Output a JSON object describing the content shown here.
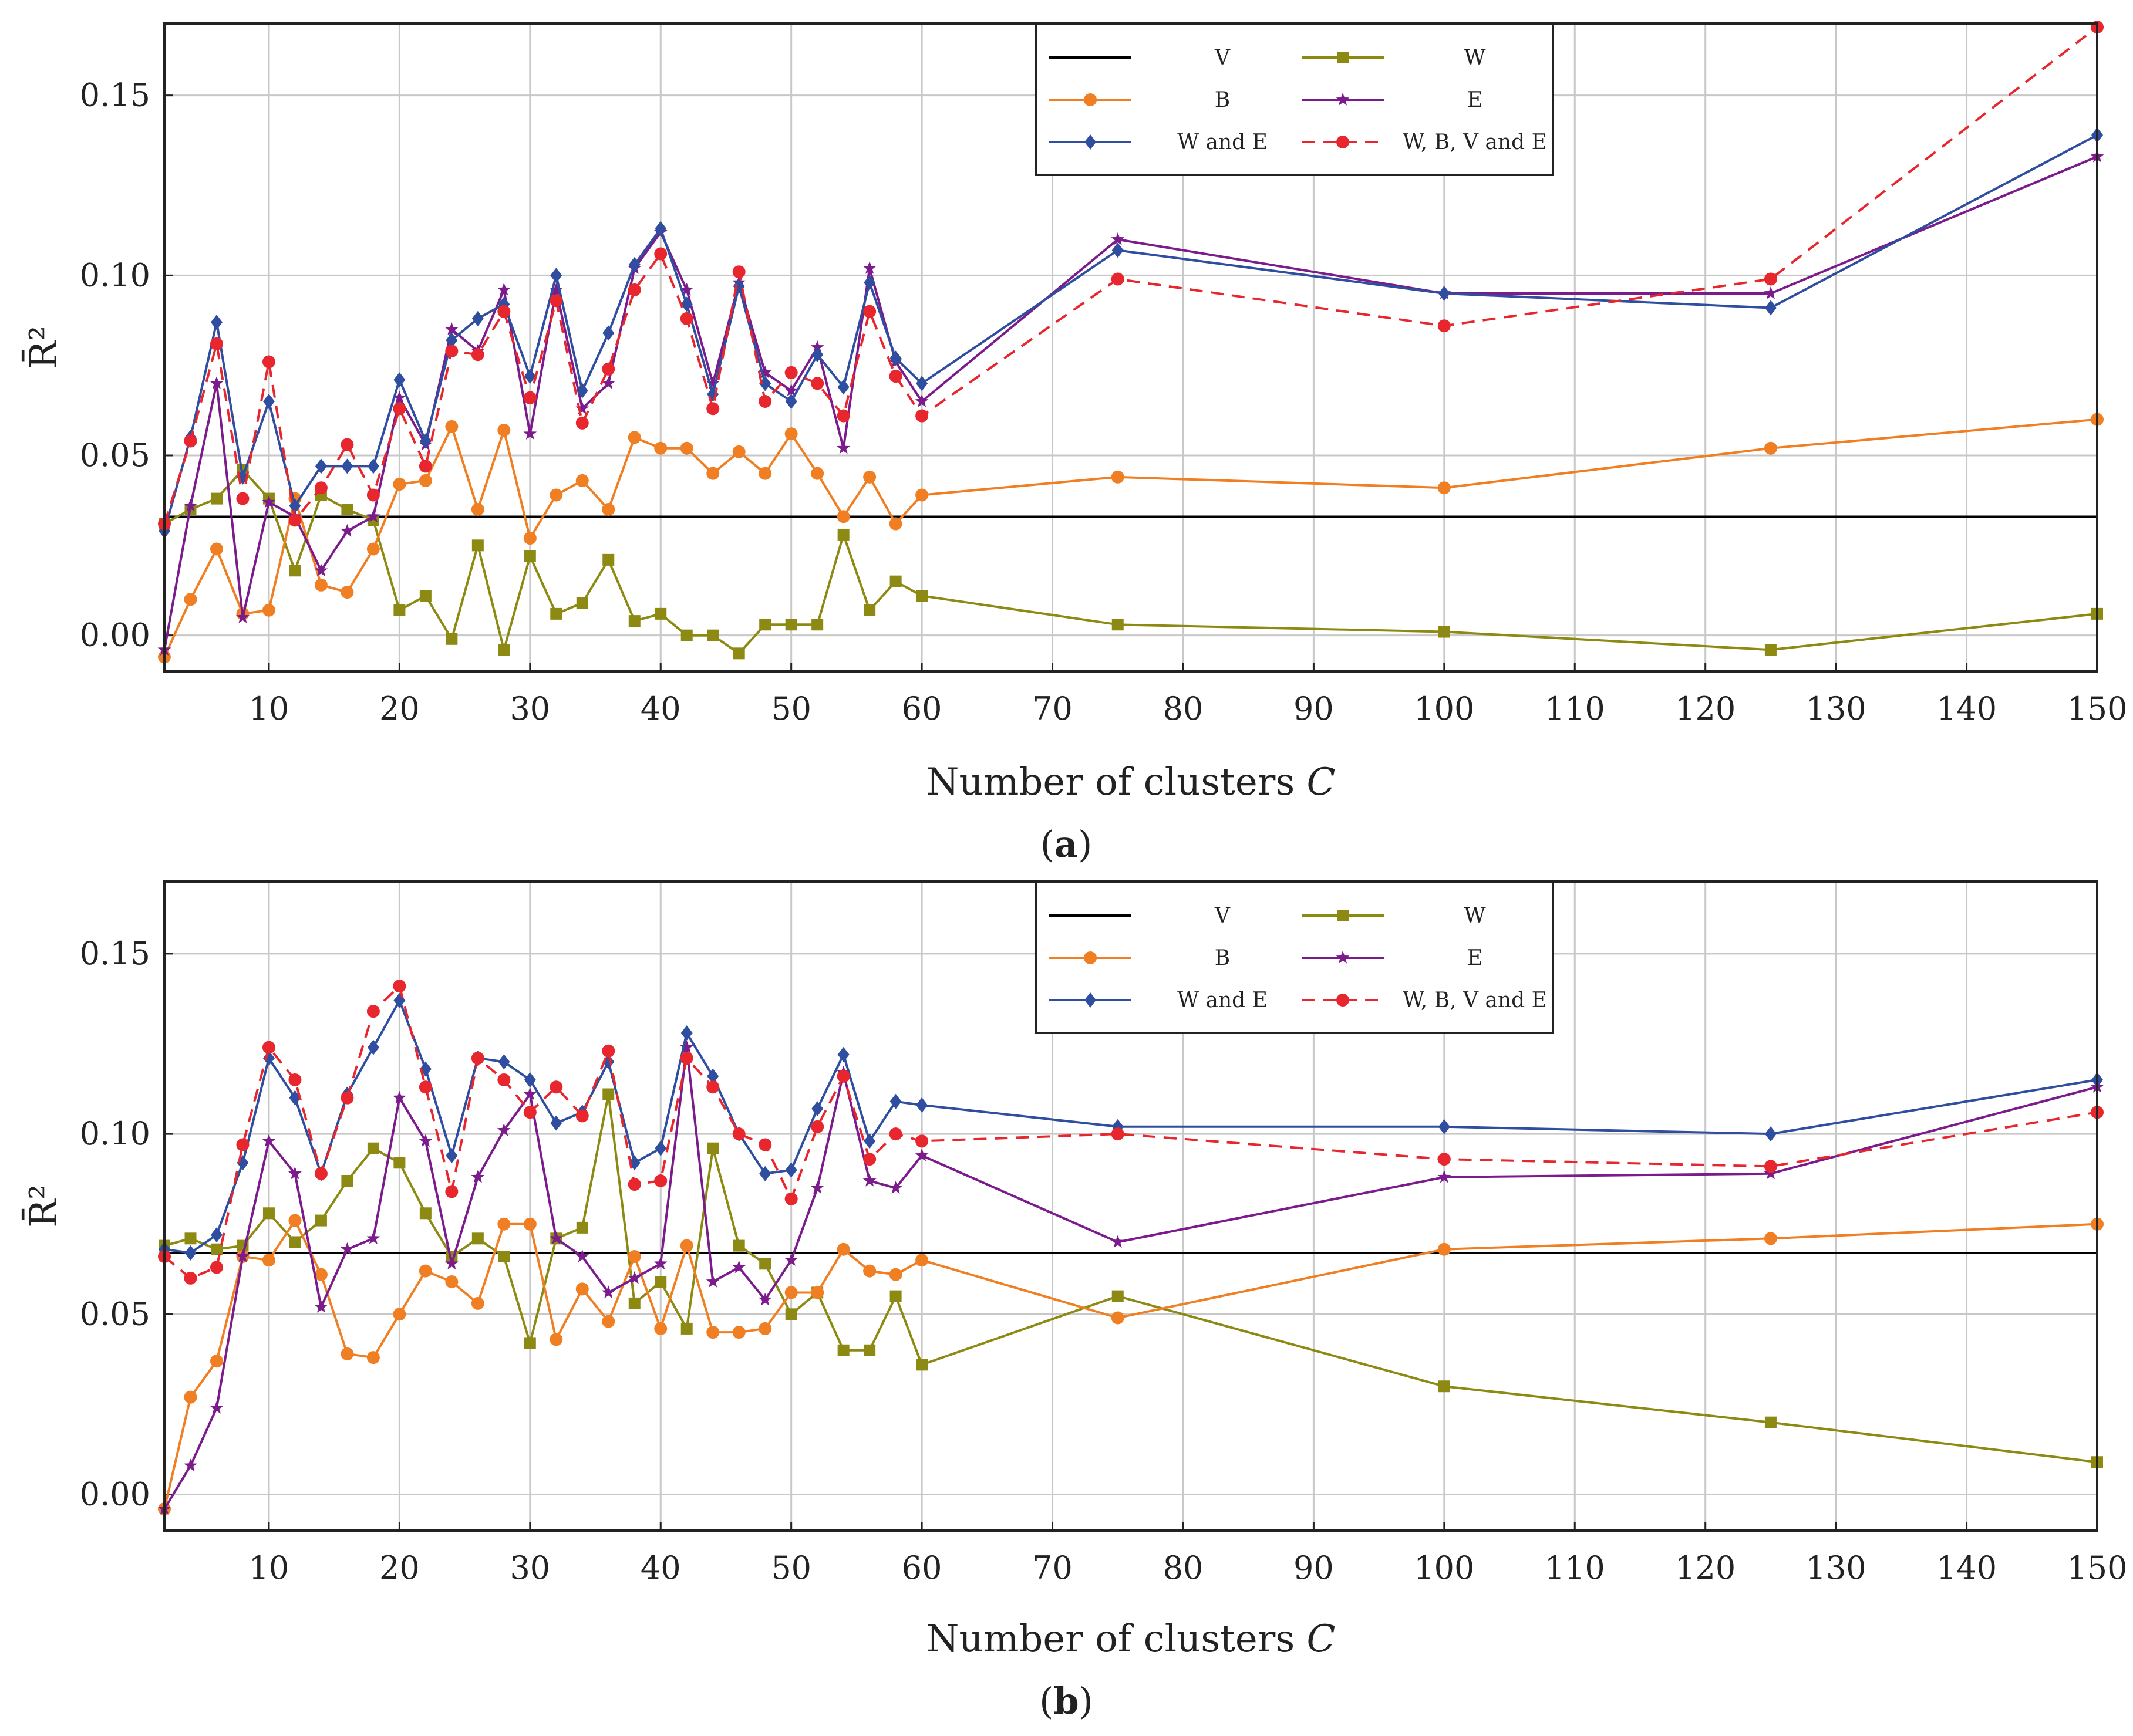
{
  "figure": {
    "captions": [
      "a",
      "b"
    ]
  },
  "chart_data": [
    {
      "panel": "a",
      "type": "line",
      "xlabel_text": "Number of clusters ",
      "xlabel_var": "C",
      "ylabel": "R̄²",
      "xlim": [
        2,
        150
      ],
      "ylim": [
        -0.01,
        0.17
      ],
      "xticks": [
        10,
        20,
        30,
        40,
        50,
        60,
        70,
        80,
        90,
        100,
        110,
        120,
        130,
        140,
        150
      ],
      "yticks": [
        0.0,
        0.05,
        0.1,
        0.15
      ],
      "ytick_labels": [
        "0.00",
        "0.05",
        "0.10",
        "0.15"
      ],
      "grid": true,
      "legend_position": "top-center",
      "legend": [
        "V",
        "W",
        "B",
        "E",
        "W and E",
        "W, B, V and E"
      ],
      "series": [
        {
          "name": "V",
          "color": "#000000",
          "marker": "none",
          "dash": false,
          "constant": 0.033
        },
        {
          "name": "W",
          "color": "#8c8a12",
          "marker": "square",
          "dash": false,
          "x": [
            2,
            4,
            6,
            8,
            10,
            12,
            14,
            16,
            18,
            20,
            22,
            24,
            26,
            28,
            30,
            32,
            34,
            36,
            38,
            40,
            42,
            44,
            46,
            48,
            50,
            52,
            54,
            56,
            58,
            60,
            75,
            100,
            125,
            150
          ],
          "y": [
            0.031,
            0.035,
            0.038,
            0.046,
            0.038,
            0.018,
            0.039,
            0.035,
            0.032,
            0.007,
            0.011,
            -0.001,
            0.025,
            -0.004,
            0.022,
            0.006,
            0.009,
            0.021,
            0.004,
            0.006,
            0.0,
            0.0,
            -0.005,
            0.003,
            0.003,
            0.003,
            0.028,
            0.007,
            0.015,
            0.011,
            0.003,
            0.001,
            -0.004,
            0.006
          ]
        },
        {
          "name": "B",
          "color": "#f07f23",
          "marker": "circle",
          "dash": false,
          "x": [
            2,
            4,
            6,
            8,
            10,
            12,
            14,
            16,
            18,
            20,
            22,
            24,
            26,
            28,
            30,
            32,
            34,
            36,
            38,
            40,
            42,
            44,
            46,
            48,
            50,
            52,
            54,
            56,
            58,
            60,
            75,
            100,
            125,
            150
          ],
          "y": [
            -0.006,
            0.01,
            0.024,
            0.006,
            0.007,
            0.038,
            0.014,
            0.012,
            0.024,
            0.042,
            0.043,
            0.058,
            0.035,
            0.057,
            0.027,
            0.039,
            0.043,
            0.035,
            0.055,
            0.052,
            0.052,
            0.045,
            0.051,
            0.045,
            0.056,
            0.045,
            0.033,
            0.044,
            0.031,
            0.039,
            0.044,
            0.041,
            0.052,
            0.06
          ]
        },
        {
          "name": "E",
          "color": "#7b1b8c",
          "marker": "star",
          "dash": false,
          "x": [
            2,
            4,
            6,
            8,
            10,
            12,
            14,
            16,
            18,
            20,
            22,
            24,
            26,
            28,
            30,
            32,
            34,
            36,
            38,
            40,
            42,
            44,
            46,
            48,
            50,
            52,
            54,
            56,
            58,
            60,
            75,
            100,
            125,
            150
          ],
          "y": [
            -0.004,
            0.036,
            0.07,
            0.005,
            0.037,
            0.033,
            0.018,
            0.029,
            0.033,
            0.066,
            0.053,
            0.085,
            0.079,
            0.096,
            0.056,
            0.096,
            0.063,
            0.07,
            0.102,
            0.112,
            0.096,
            0.07,
            0.098,
            0.073,
            0.068,
            0.08,
            0.052,
            0.102,
            0.076,
            0.065,
            0.11,
            0.095,
            0.095,
            0.133
          ]
        },
        {
          "name": "W and E",
          "color": "#2f4ea0",
          "marker": "diamond",
          "dash": false,
          "x": [
            2,
            4,
            6,
            8,
            10,
            12,
            14,
            16,
            18,
            20,
            22,
            24,
            26,
            28,
            30,
            32,
            34,
            36,
            38,
            40,
            42,
            44,
            46,
            48,
            50,
            52,
            54,
            56,
            58,
            60,
            75,
            100,
            125,
            150
          ],
          "y": [
            0.029,
            0.055,
            0.087,
            0.044,
            0.065,
            0.036,
            0.047,
            0.047,
            0.047,
            0.071,
            0.054,
            0.082,
            0.088,
            0.092,
            0.072,
            0.1,
            0.068,
            0.084,
            0.103,
            0.113,
            0.092,
            0.067,
            0.097,
            0.07,
            0.065,
            0.078,
            0.069,
            0.098,
            0.077,
            0.07,
            0.107,
            0.095,
            0.091,
            0.139
          ]
        },
        {
          "name": "W, B, V and E",
          "color": "#e8262d",
          "marker": "circle",
          "dash": true,
          "x": [
            2,
            4,
            6,
            8,
            10,
            12,
            14,
            16,
            18,
            20,
            22,
            24,
            26,
            28,
            30,
            32,
            34,
            36,
            38,
            40,
            42,
            44,
            46,
            48,
            50,
            52,
            54,
            56,
            58,
            60,
            75,
            100,
            125,
            150
          ],
          "y": [
            0.031,
            0.054,
            0.081,
            0.038,
            0.076,
            0.032,
            0.041,
            0.053,
            0.039,
            0.063,
            0.047,
            0.079,
            0.078,
            0.09,
            0.066,
            0.093,
            0.059,
            0.074,
            0.096,
            0.106,
            0.088,
            0.063,
            0.101,
            0.065,
            0.073,
            0.07,
            0.061,
            0.09,
            0.072,
            0.061,
            0.099,
            0.086,
            0.099,
            0.169
          ]
        }
      ]
    },
    {
      "panel": "b",
      "type": "line",
      "xlabel_text": "Number of clusters ",
      "xlabel_var": "C",
      "ylabel": "R̄²",
      "xlim": [
        2,
        150
      ],
      "ylim": [
        -0.01,
        0.17
      ],
      "xticks": [
        10,
        20,
        30,
        40,
        50,
        60,
        70,
        80,
        90,
        100,
        110,
        120,
        130,
        140,
        150
      ],
      "yticks": [
        0.0,
        0.05,
        0.1,
        0.15
      ],
      "ytick_labels": [
        "0.00",
        "0.05",
        "0.10",
        "0.15"
      ],
      "grid": true,
      "legend_position": "top-center",
      "legend": [
        "V",
        "W",
        "B",
        "E",
        "W and E",
        "W, B, V and E"
      ],
      "series": [
        {
          "name": "V",
          "color": "#000000",
          "marker": "none",
          "dash": false,
          "constant": 0.067
        },
        {
          "name": "W",
          "color": "#8c8a12",
          "marker": "square",
          "dash": false,
          "x": [
            2,
            4,
            6,
            8,
            10,
            12,
            14,
            16,
            18,
            20,
            22,
            24,
            26,
            28,
            30,
            32,
            34,
            36,
            38,
            40,
            42,
            44,
            46,
            48,
            50,
            52,
            54,
            56,
            58,
            60,
            75,
            100,
            125,
            150
          ],
          "y": [
            0.069,
            0.071,
            0.068,
            0.069,
            0.078,
            0.07,
            0.076,
            0.087,
            0.096,
            0.092,
            0.078,
            0.066,
            0.071,
            0.066,
            0.042,
            0.071,
            0.074,
            0.111,
            0.053,
            0.059,
            0.046,
            0.096,
            0.069,
            0.064,
            0.05,
            0.056,
            0.04,
            0.04,
            0.055,
            0.036,
            0.055,
            0.03,
            0.02,
            0.009
          ]
        },
        {
          "name": "B",
          "color": "#f07f23",
          "marker": "circle",
          "dash": false,
          "x": [
            2,
            4,
            6,
            8,
            10,
            12,
            14,
            16,
            18,
            20,
            22,
            24,
            26,
            28,
            30,
            32,
            34,
            36,
            38,
            40,
            42,
            44,
            46,
            48,
            50,
            52,
            54,
            56,
            58,
            60,
            75,
            100,
            125,
            150
          ],
          "y": [
            -0.004,
            0.027,
            0.037,
            0.066,
            0.065,
            0.076,
            0.061,
            0.039,
            0.038,
            0.05,
            0.062,
            0.059,
            0.053,
            0.075,
            0.075,
            0.043,
            0.057,
            0.048,
            0.066,
            0.046,
            0.069,
            0.045,
            0.045,
            0.046,
            0.056,
            0.056,
            0.068,
            0.062,
            0.061,
            0.065,
            0.049,
            0.068,
            0.071,
            0.075
          ]
        },
        {
          "name": "E",
          "color": "#7b1b8c",
          "marker": "star",
          "dash": false,
          "x": [
            2,
            4,
            6,
            8,
            10,
            12,
            14,
            16,
            18,
            20,
            22,
            24,
            26,
            28,
            30,
            32,
            34,
            36,
            38,
            40,
            42,
            44,
            46,
            48,
            50,
            52,
            54,
            56,
            58,
            60,
            75,
            100,
            125,
            150
          ],
          "y": [
            -0.004,
            0.008,
            0.024,
            0.066,
            0.098,
            0.089,
            0.052,
            0.068,
            0.071,
            0.11,
            0.098,
            0.064,
            0.088,
            0.101,
            0.111,
            0.071,
            0.066,
            0.056,
            0.06,
            0.064,
            0.124,
            0.059,
            0.063,
            0.054,
            0.065,
            0.085,
            0.117,
            0.087,
            0.085,
            0.094,
            0.07,
            0.088,
            0.089,
            0.113
          ]
        },
        {
          "name": "W and E",
          "color": "#2f4ea0",
          "marker": "diamond",
          "dash": false,
          "x": [
            2,
            4,
            6,
            8,
            10,
            12,
            14,
            16,
            18,
            20,
            22,
            24,
            26,
            28,
            30,
            32,
            34,
            36,
            38,
            40,
            42,
            44,
            46,
            48,
            50,
            52,
            54,
            56,
            58,
            60,
            75,
            100,
            125,
            150
          ],
          "y": [
            0.068,
            0.067,
            0.072,
            0.092,
            0.121,
            0.11,
            0.089,
            0.111,
            0.124,
            0.137,
            0.118,
            0.094,
            0.121,
            0.12,
            0.115,
            0.103,
            0.106,
            0.12,
            0.092,
            0.096,
            0.128,
            0.116,
            0.1,
            0.089,
            0.09,
            0.107,
            0.122,
            0.098,
            0.109,
            0.108,
            0.102,
            0.102,
            0.1,
            0.115
          ]
        },
        {
          "name": "W, B, V and E",
          "color": "#e8262d",
          "marker": "circle",
          "dash": true,
          "x": [
            2,
            4,
            6,
            8,
            10,
            12,
            14,
            16,
            18,
            20,
            22,
            24,
            26,
            28,
            30,
            32,
            34,
            36,
            38,
            40,
            42,
            44,
            46,
            48,
            50,
            52,
            54,
            56,
            58,
            60,
            75,
            100,
            125,
            150
          ],
          "y": [
            0.066,
            0.06,
            0.063,
            0.097,
            0.124,
            0.115,
            0.089,
            0.11,
            0.134,
            0.141,
            0.113,
            0.084,
            0.121,
            0.115,
            0.106,
            0.113,
            0.105,
            0.123,
            0.086,
            0.087,
            0.121,
            0.113,
            0.1,
            0.097,
            0.082,
            0.102,
            0.116,
            0.093,
            0.1,
            0.098,
            0.1,
            0.093,
            0.091,
            0.106
          ]
        }
      ]
    }
  ]
}
